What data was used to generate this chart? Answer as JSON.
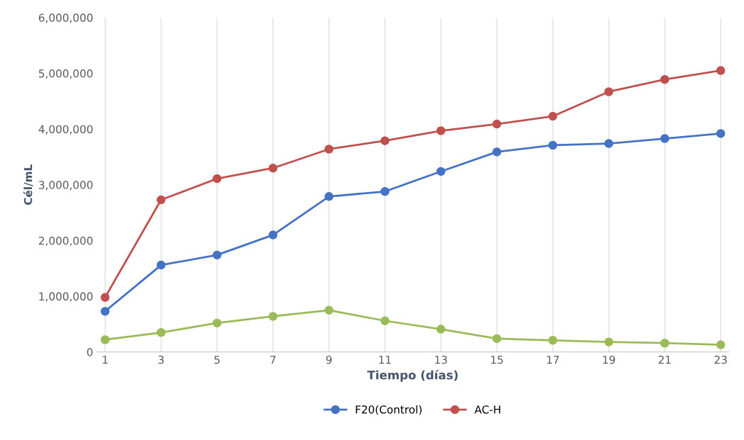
{
  "chart_data": {
    "type": "line",
    "xlabel": "Tiempo (días)",
    "ylabel": "Cél/mL",
    "categories": [
      "1",
      "3",
      "5",
      "7",
      "9",
      "11",
      "13",
      "15",
      "17",
      "19",
      "21",
      "23"
    ],
    "ylim": [
      0,
      6000000
    ],
    "yticks": [
      {
        "value": 0,
        "label": "0"
      },
      {
        "value": 1000000,
        "label": "1,000,000"
      },
      {
        "value": 2000000,
        "label": "2,000,000"
      },
      {
        "value": 3000000,
        "label": "3,000,000"
      },
      {
        "value": 4000000,
        "label": "4,000,000"
      },
      {
        "value": 5000000,
        "label": "5,000,000"
      },
      {
        "value": 6000000,
        "label": "6,000,000"
      }
    ],
    "grid": "x",
    "legend": "bottom",
    "marker": "circle",
    "line_style": "solid",
    "series": [
      {
        "name": "F20(Control)",
        "color": "#4472c4",
        "values": [
          730000,
          1560000,
          1740000,
          2100000,
          2790000,
          2880000,
          3240000,
          3590000,
          3710000,
          3740000,
          3830000,
          3920000
        ]
      },
      {
        "name": "AC-H",
        "color": "#c0504d",
        "values": [
          980000,
          2730000,
          3110000,
          3300000,
          3640000,
          3790000,
          3970000,
          4090000,
          4230000,
          4670000,
          4890000,
          5050000
        ]
      },
      {
        "color": "#9bbb59",
        "values": [
          220000,
          350000,
          520000,
          640000,
          750000,
          560000,
          410000,
          240000,
          210000,
          180000,
          160000,
          130000
        ]
      }
    ]
  }
}
